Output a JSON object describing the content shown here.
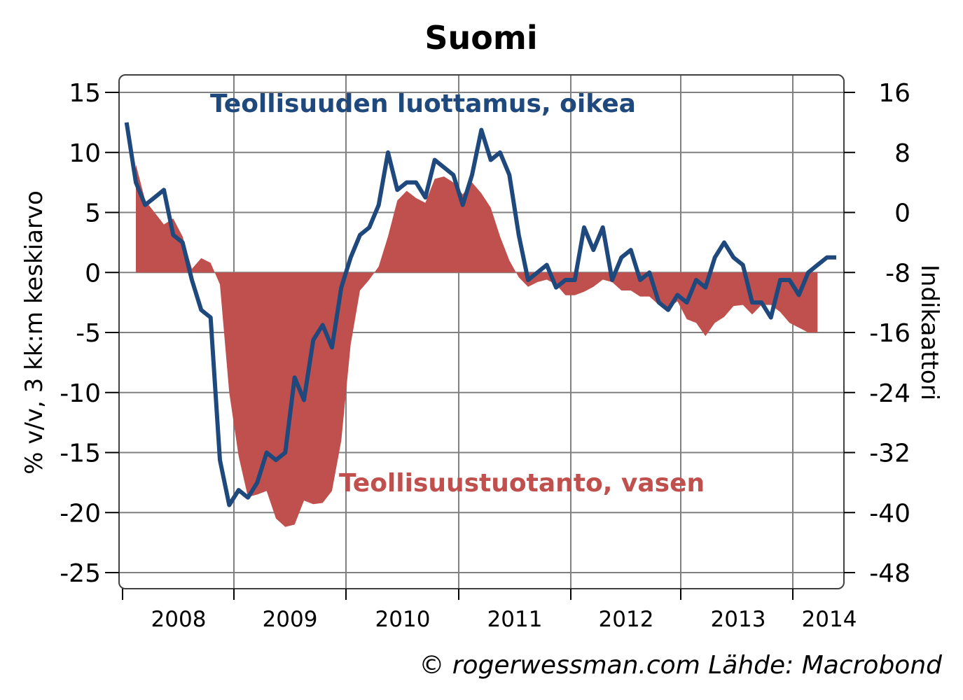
{
  "chart_data": {
    "type": "line",
    "title": "Suomi",
    "ylabel_left": "% v/v, 3 kk:m keskiarvo",
    "ylabel_right": "Indikaattori",
    "ylim_left": [
      -25,
      15
    ],
    "ylim_right": [
      -48,
      16
    ],
    "yticks_left": [
      "15",
      "10",
      "5",
      "0",
      "-5",
      "-10",
      "-15",
      "-20",
      "-25"
    ],
    "yticks_right": [
      "16",
      "8",
      "0",
      "-8",
      "-16",
      "-24",
      "-32",
      "-40",
      "-48"
    ],
    "xticks": [
      "2008",
      "2009",
      "2010",
      "2011",
      "2012",
      "2013",
      "2014"
    ],
    "grid": true,
    "credit": "© rogerwessman.com Lähde: Macrobond",
    "series": [
      {
        "name": "Teollisuustuotanto, vasen",
        "type": "area",
        "axis": "left",
        "color": "#c0504d",
        "x": [
          "2008-02",
          "2008-03",
          "2008-04",
          "2008-05",
          "2008-06",
          "2008-07",
          "2008-08",
          "2008-09",
          "2008-10",
          "2008-11",
          "2008-12",
          "2009-01",
          "2009-02",
          "2009-03",
          "2009-04",
          "2009-05",
          "2009-06",
          "2009-07",
          "2009-08",
          "2009-09",
          "2009-10",
          "2009-11",
          "2009-12",
          "2010-01",
          "2010-02",
          "2010-03",
          "2010-04",
          "2010-05",
          "2010-06",
          "2010-07",
          "2010-08",
          "2010-09",
          "2010-10",
          "2010-11",
          "2010-12",
          "2011-01",
          "2011-02",
          "2011-03",
          "2011-04",
          "2011-05",
          "2011-06",
          "2011-07",
          "2011-08",
          "2011-09",
          "2011-10",
          "2011-11",
          "2011-12",
          "2012-01",
          "2012-02",
          "2012-03",
          "2012-04",
          "2012-05",
          "2012-06",
          "2012-07",
          "2012-08",
          "2012-09",
          "2012-10",
          "2012-11",
          "2012-12",
          "2013-01",
          "2013-02",
          "2013-03",
          "2013-04",
          "2013-05",
          "2013-06",
          "2013-07",
          "2013-08",
          "2013-09",
          "2013-10",
          "2013-11",
          "2013-12",
          "2014-01",
          "2014-02",
          "2014-03"
        ],
        "values": [
          9.0,
          6.0,
          5.0,
          4.0,
          4.5,
          3.0,
          0.3,
          1.2,
          0.8,
          -1.0,
          -10.0,
          -15.3,
          -18.7,
          -18.5,
          -18.2,
          -20.5,
          -21.2,
          -21.0,
          -19.0,
          -19.3,
          -19.2,
          -18.2,
          -14.0,
          -6.0,
          -1.5,
          -0.6,
          0.5,
          3.0,
          6.0,
          6.8,
          6.2,
          5.8,
          7.8,
          8.0,
          7.5,
          6.5,
          7.5,
          6.6,
          5.4,
          3.0,
          1.0,
          -0.4,
          -1.2,
          -0.8,
          -0.6,
          -1.0,
          -1.9,
          -1.9,
          -1.6,
          -1.2,
          -0.6,
          -0.8,
          -1.5,
          -1.5,
          -2.0,
          -2.0,
          -2.7,
          -3.0,
          -2.4,
          -3.9,
          -4.2,
          -5.3,
          -4.2,
          -3.7,
          -2.8,
          -2.7,
          -3.5,
          -2.7,
          -2.7,
          -3.3,
          -4.2,
          -4.6,
          -5.0,
          -5.0
        ]
      },
      {
        "name": "Teollisuuden luottamus, oikea",
        "type": "line",
        "axis": "right",
        "color": "#1f497d",
        "x": [
          "2008-01",
          "2008-02",
          "2008-03",
          "2008-04",
          "2008-05",
          "2008-06",
          "2008-07",
          "2008-08",
          "2008-09",
          "2008-10",
          "2008-11",
          "2008-12",
          "2009-01",
          "2009-02",
          "2009-03",
          "2009-04",
          "2009-05",
          "2009-06",
          "2009-07",
          "2009-08",
          "2009-09",
          "2009-10",
          "2009-11",
          "2009-12",
          "2010-01",
          "2010-02",
          "2010-03",
          "2010-04",
          "2010-05",
          "2010-06",
          "2010-07",
          "2010-08",
          "2010-09",
          "2010-10",
          "2010-11",
          "2010-12",
          "2011-01",
          "2011-02",
          "2011-03",
          "2011-04",
          "2011-05",
          "2011-06",
          "2011-07",
          "2011-08",
          "2011-09",
          "2011-10",
          "2011-11",
          "2011-12",
          "2012-01",
          "2012-02",
          "2012-03",
          "2012-04",
          "2012-05",
          "2012-06",
          "2012-07",
          "2012-08",
          "2012-09",
          "2012-10",
          "2012-11",
          "2012-12",
          "2013-01",
          "2013-02",
          "2013-03",
          "2013-04",
          "2013-05",
          "2013-06",
          "2013-07",
          "2013-08",
          "2013-09",
          "2013-10",
          "2013-11",
          "2013-12",
          "2014-01",
          "2014-02",
          "2014-03",
          "2014-04",
          "2014-05"
        ],
        "values": [
          12,
          4,
          1,
          2,
          3,
          -3,
          -4,
          -9,
          -13,
          -14,
          -33,
          -39,
          -37,
          -38,
          -36,
          -32,
          -33,
          -32,
          -22,
          -25,
          -17,
          -15,
          -18,
          -10,
          -6,
          -3,
          -2,
          1,
          8,
          3,
          4,
          4,
          2,
          7,
          6,
          5,
          1,
          5,
          11,
          7,
          8,
          5,
          -3,
          -9,
          -8,
          -7,
          -10,
          -9,
          -9,
          -2,
          -5,
          -2,
          -9,
          -6,
          -5,
          -9,
          -8,
          -12,
          -13,
          -11,
          -12,
          -9,
          -10,
          -6,
          -4,
          -6,
          -7,
          -12,
          -12,
          -14,
          -9,
          -9,
          -11,
          -8,
          -7,
          -6,
          -6
        ]
      }
    ]
  }
}
